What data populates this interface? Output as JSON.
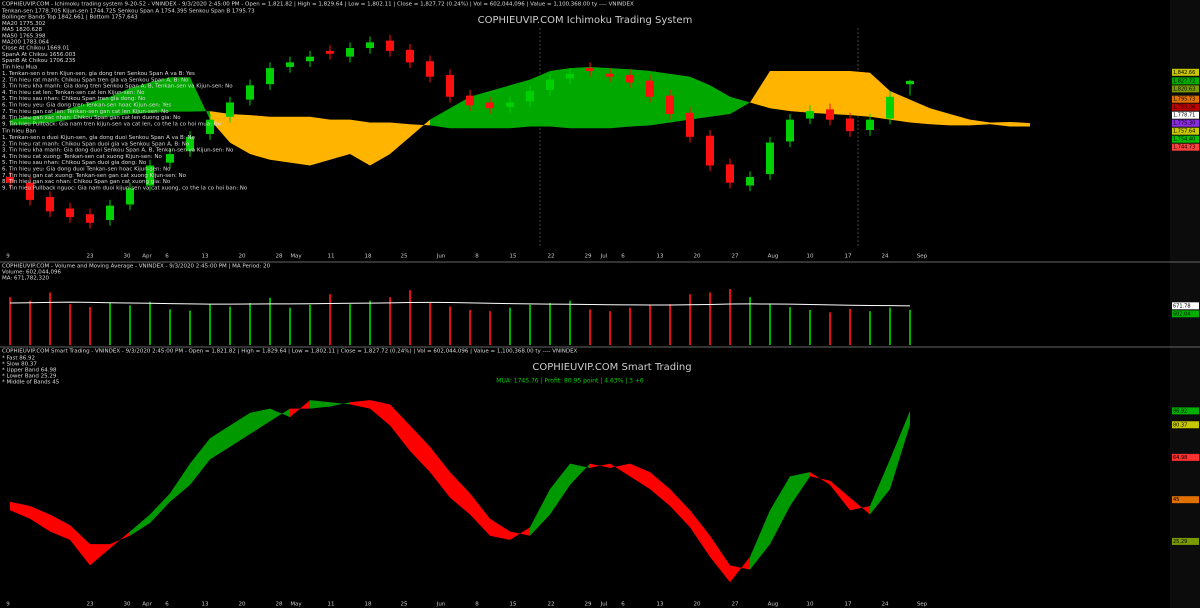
{
  "dates": [
    "9",
    "23",
    "30",
    "Apr",
    "6",
    "13",
    "20",
    "28",
    "May",
    "11",
    "18",
    "25",
    "Jun",
    "8",
    "15",
    "22",
    "29",
    "Jul",
    "6",
    "13",
    "20",
    "27",
    "Aug",
    "10",
    "17",
    "24",
    "Sep"
  ],
  "price_panel": {
    "header": "COPHIEUVIP.COM - Ichimoku trading system 9-20-52 - VNINDEX - 9/3/2020 2:45:00 PM - Open = 1,821.82 | High = 1,829.64 | Low = 1,802.11 | Close = 1,827.72 (0.24%) | Vol = 602,044,096 | Value = 1,100,368.00 ty ---- VNINDEX",
    "info": [
      "Tenkan-sen 1778.705  Kijun-sen 1744.725  Senkou Span A 1754.395  Senkou Span B 1795.73",
      "Bollinger Bands Top 1842.661 | Bottom 1757.643",
      "MA20 1775.302",
      "MA5 1820.628",
      "MA50 1765.398",
      "MA200 1783.064",
      "Close At Chikou 1669.01",
      "SpanA At Chikou 1656.003",
      "SpanB At Chikou 1706.235"
    ],
    "buy_title": "Tin hieu Mua",
    "buy_signals": [
      "1. Tenkan-sen o tren Kijun-sen, gia dong tren Senkou Span A va B: Yes",
      "2. Tin hieu rat manh: Chikou Span tren gia va Senkou Span A, B: No",
      "3. Tin hieu kha manh: Gia dong tren Senkou Span A, B, Tenkan-sen va Kijun-sen: No",
      "4. Tin hieu cat len: Tenkan-sen cat len Kijun-sen: No",
      "5. Tin hieu sau nhan: Chikou Span tren gia dong: No",
      "6. Tin hieu yeu: Gia dong tren Tenkan-sen hoac Kijun-sen: Yes",
      "7. Tin hieu gan cat len: Tenkan-sen gan cat len Kijun-sen: No",
      "8. Tin hieu gan xac nhan: Chikou Span gan cat len duong gia: No",
      "9. Tin hieu Pullback: Gia nam tren kijun-sen va cat len, co the la co hoi mua: No"
    ],
    "sell_title": "Tin hieu Ban",
    "sell_signals": [
      "1. Tenkan-sen o duoi Kijun-sen, gia dong duoi Senkou Span A va B: No",
      "2. Tin hieu rat manh: Chikou Span duoi gia va Senkou Span A, B: No",
      "3. Tin hieu kha manh: Gia dong duoi Senkou Span A, B, Tenkan-sen va Kijun-sen: No",
      "4. Tin hieu cat xuong: Tenkan-sen cat xuong Kijun-sen: No",
      "5. Tin hieu sau nhan: Chikou Span duoi gia dong: No",
      "6. Tin hieu yeu: Gia dong duoi Tenkan-sen hoac Kijun-sen: No",
      "7. Tin hieu gan cat xuong: Tenkan-sen gan cat xuong Kijun-sen: No",
      "8. Tin hieu gan xac nhan: Chikou Span gan cat xuong gia: No",
      "9. Tin hieu Pullback nguoc: Gia nam duoi kijun-sen va cat xuong, co the la co hoi ban: No"
    ],
    "title": "COPHIEUVIP.COM Ichimoku Trading System",
    "ylim": [
      1550,
      1920
    ],
    "open": [
      1660,
      1650,
      1625,
      1605,
      1595,
      1585,
      1612,
      1645,
      1685,
      1705,
      1735,
      1765,
      1795,
      1822,
      1852,
      1862,
      1880,
      1870,
      1885,
      1898,
      1882,
      1862,
      1838,
      1802,
      1790,
      1782,
      1792,
      1812,
      1832,
      1850,
      1840,
      1838,
      1828,
      1802,
      1772,
      1732,
      1682,
      1645,
      1665,
      1722,
      1762,
      1778,
      1762,
      1742,
      1762,
      1821.82
    ],
    "high": [
      1670,
      1660,
      1635,
      1615,
      1605,
      1620,
      1650,
      1690,
      1710,
      1740,
      1770,
      1800,
      1830,
      1860,
      1870,
      1880,
      1890,
      1895,
      1905,
      1908,
      1892,
      1872,
      1848,
      1812,
      1800,
      1800,
      1820,
      1840,
      1850,
      1860,
      1850,
      1848,
      1838,
      1812,
      1782,
      1742,
      1692,
      1670,
      1730,
      1770,
      1785,
      1788,
      1772,
      1770,
      1810,
      1829.64
    ],
    "low": [
      1640,
      1610,
      1590,
      1580,
      1570,
      1575,
      1602,
      1635,
      1675,
      1695,
      1725,
      1755,
      1785,
      1812,
      1842,
      1852,
      1865,
      1860,
      1875,
      1870,
      1850,
      1825,
      1790,
      1775,
      1770,
      1772,
      1782,
      1802,
      1822,
      1835,
      1825,
      1815,
      1790,
      1760,
      1720,
      1670,
      1640,
      1635,
      1655,
      1712,
      1752,
      1750,
      1730,
      1732,
      1752,
      1802.11
    ],
    "close": [
      1650,
      1620,
      1600,
      1590,
      1580,
      1610,
      1640,
      1680,
      1700,
      1730,
      1760,
      1790,
      1820,
      1850,
      1860,
      1870,
      1875,
      1885,
      1895,
      1880,
      1860,
      1835,
      1800,
      1785,
      1780,
      1790,
      1810,
      1830,
      1840,
      1845,
      1835,
      1825,
      1800,
      1770,
      1730,
      1680,
      1650,
      1660,
      1720,
      1760,
      1775,
      1760,
      1740,
      1760,
      1800,
      1827.72
    ],
    "span_a": [
      1760,
      1765,
      1770,
      1780,
      1790,
      1800,
      1815,
      1825,
      1834,
      1834,
      1760,
      1720,
      1700,
      1690,
      1685,
      1680,
      1690,
      1700,
      1680,
      1700,
      1730,
      1760,
      1780,
      1800,
      1810,
      1820,
      1830,
      1845,
      1850,
      1852,
      1850,
      1848,
      1845,
      1840,
      1835,
      1820,
      1800,
      1790,
      1780,
      1775,
      1772,
      1770,
      1768,
      1765,
      1760,
      1755,
      1752,
      1750,
      1750,
      1752,
      1748,
      1748
    ],
    "span_b": [
      1750,
      1752,
      1755,
      1760,
      1765,
      1765,
      1770,
      1772,
      1774,
      1774,
      1775,
      1770,
      1768,
      1765,
      1765,
      1765,
      1760,
      1760,
      1755,
      1755,
      1752,
      1750,
      1745,
      1745,
      1745,
      1745,
      1748,
      1748,
      1745,
      1745,
      1745,
      1748,
      1750,
      1755,
      1760,
      1765,
      1770,
      1790,
      1845,
      1845,
      1845,
      1845,
      1845,
      1842,
      1810,
      1795,
      1780,
      1770,
      1760,
      1755,
      1756,
      1754
    ],
    "axis_labels": [
      {
        "value": 1842.66,
        "label": "1,842.66"
      },
      {
        "value": 1827.72,
        "label": "1,827.72"
      },
      {
        "value": 1820.63,
        "label": "1,820.63"
      },
      {
        "value": 1795.73,
        "label": "1,795.73"
      },
      {
        "value": 1783.06,
        "label": "1,783.06"
      },
      {
        "value": 1778.71,
        "label": "1,778.71"
      },
      {
        "value": 1775.3,
        "label": "1,775.30"
      },
      {
        "value": 1757.64,
        "label": "1,757.64"
      },
      {
        "value": 1754.4,
        "label": "1,754.40"
      },
      {
        "value": 1744.73,
        "label": "1,744.73"
      }
    ],
    "axis_label_colors": [
      "#c8c800",
      "#00b000",
      "#7a9a00",
      "#e07000",
      "#c00000",
      "#ffffff",
      "#8a2be2",
      "#c8c800",
      "#00c000",
      "#ff4040"
    ]
  },
  "volume_panel": {
    "header": "COPHIEUVIP.COM - Volume and Moving Average - VNINDEX - 9/3/2020 2:45:00 PM | MA Period: 20",
    "info": [
      "Volume: 602,044,096",
      "MA: 671,782,320"
    ],
    "ylim": [
      0,
      1200
    ],
    "volume": [
      820,
      760,
      900,
      700,
      650,
      720,
      680,
      740,
      610,
      590,
      700,
      660,
      720,
      810,
      640,
      690,
      870,
      700,
      760,
      820,
      940,
      720,
      660,
      600,
      580,
      640,
      690,
      720,
      760,
      610,
      580,
      640,
      690,
      700,
      870,
      900,
      960,
      820,
      700,
      650,
      600,
      560,
      620,
      580,
      640,
      602.04
    ],
    "ma": [
      720,
      725,
      730,
      735,
      730,
      725,
      720,
      715,
      710,
      705,
      700,
      700,
      702,
      705,
      705,
      708,
      712,
      715,
      718,
      722,
      728,
      730,
      728,
      722,
      715,
      710,
      705,
      700,
      698,
      695,
      690,
      688,
      686,
      686,
      690,
      695,
      702,
      705,
      703,
      700,
      695,
      688,
      682,
      678,
      675,
      671.78
    ],
    "axis_labels": [
      671.78,
      602.04
    ],
    "axis_label_colors": [
      "#ffffff",
      "#00b000"
    ]
  },
  "oscillator_panel": {
    "header": "COPHIEUVIP.COM Smart Trading - VNINDEX - 9/3/2020 2:45:00 PM - Open = 1,821.82 | High = 1,829.64 | Low = 1,802.11 | Close = 1,827.72 (0.24%) | Vol = 602,044,096 | Value = 1,100,368.00 ty ---- VNINDEX",
    "info": [
      "* Fast  86.92",
      "* Slow  80.37",
      "* Upper Band  64.98",
      "* Lower Band  25.29",
      "* Middle of Bands  45"
    ],
    "title": "COPHIEUVIP.COM Smart Trading",
    "status": "MUA: 1745.76 | Profit: 80.95 point | 4.63% | 3 +6",
    "ylim": [
      0,
      110
    ],
    "fast": [
      40,
      36,
      30,
      26,
      14,
      22,
      30,
      38,
      48,
      62,
      74,
      80,
      86,
      88,
      84,
      92,
      91,
      90,
      88,
      80,
      68,
      58,
      46,
      38,
      28,
      26,
      32,
      50,
      62,
      60,
      62,
      56,
      50,
      42,
      32,
      18,
      6,
      18,
      40,
      56,
      58,
      52,
      40,
      42,
      64,
      86.92
    ],
    "slow": [
      44,
      42,
      38,
      33,
      24,
      24,
      28,
      34,
      44,
      52,
      64,
      70,
      76,
      82,
      88,
      88,
      89,
      91,
      92,
      90,
      80,
      70,
      58,
      48,
      36,
      30,
      28,
      38,
      52,
      62,
      60,
      62,
      58,
      50,
      40,
      28,
      14,
      12,
      24,
      42,
      56,
      54,
      46,
      38,
      50,
      80.37
    ],
    "axis_labels": [
      86.92,
      80.37,
      64.98,
      45,
      25.29
    ],
    "axis_label_colors": [
      "#00b000",
      "#c8c800",
      "#ff3030",
      "#e07000",
      "#7a9a00"
    ]
  }
}
